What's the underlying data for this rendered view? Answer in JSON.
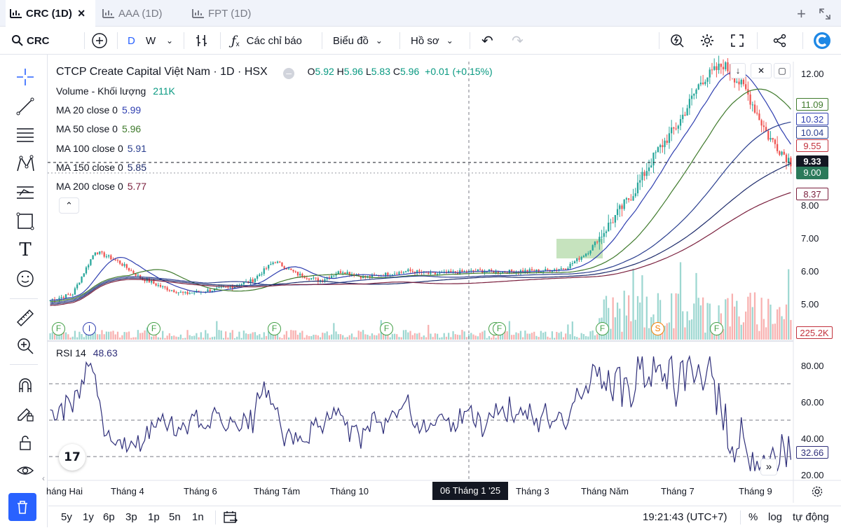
{
  "tabs": [
    {
      "label": "CRC (1D)",
      "active": true
    },
    {
      "label": "AAA (1D)",
      "active": false
    },
    {
      "label": "FPT (1D)",
      "active": false
    }
  ],
  "toolbar": {
    "symbol": "CRC",
    "interval_d": "D",
    "interval_w": "W",
    "indicators": "Các chỉ báo",
    "chart_type": "Biểu đồ",
    "profile": "Hồ sơ"
  },
  "legend": {
    "title": "CTCP Create Capital Việt Nam · 1D · HSX",
    "o_label": "O",
    "o": "5.92",
    "h_label": "H",
    "h": "5.96",
    "l_label": "L",
    "l": "5.83",
    "c_label": "C",
    "c": "5.96",
    "change": "+0.01 (+0.15%)",
    "volume_label": "Volume - Khối lượng",
    "volume": "211K",
    "ma": [
      {
        "label": "MA 20 close 0",
        "value": "5.99",
        "color": "#2f3fb0"
      },
      {
        "label": "MA 50 close 0",
        "value": "5.96",
        "color": "#3f7a2c"
      },
      {
        "label": "MA 100 close 0",
        "value": "5.91",
        "color": "#2b3f8f"
      },
      {
        "label": "MA 150 close 0",
        "value": "5.85",
        "color": "#1c2a6a"
      },
      {
        "label": "MA 200 close 0",
        "value": "5.77",
        "color": "#7a1f3d"
      }
    ]
  },
  "price_axis": [
    "12.00",
    "8.00",
    "7.00",
    "6.00",
    "5.00"
  ],
  "price_labels": [
    {
      "text": "11.09",
      "color": "#3f7a2c",
      "bg": "#ffffff"
    },
    {
      "text": "10.32",
      "color": "#2f3fb0",
      "bg": "#ffffff"
    },
    {
      "text": "10.04",
      "color": "#2b3f8f",
      "bg": "#ffffff"
    },
    {
      "text": "9.55",
      "color": "#c2313c",
      "bg": "#ffffff"
    },
    {
      "text": "9.33",
      "color": "#ffffff",
      "bg": "#131722"
    },
    {
      "text": "9.00",
      "color": "#ffffff",
      "bg": "#2b7a5a"
    },
    {
      "text": "8.37",
      "color": "#7a1f3d",
      "bg": "#ffffff"
    }
  ],
  "volume_axis_label": "225.2K",
  "rsi": {
    "label": "RSI 14",
    "value": "48.63",
    "axis": [
      "80.00",
      "60.00",
      "40.00",
      "20.00"
    ],
    "last": "32.66"
  },
  "time_axis": [
    "háng Hai",
    "Tháng 4",
    "Tháng 6",
    "Tháng Tám",
    "Tháng 10",
    "Tháng 3",
    "Tháng Năm",
    "Tháng 7",
    "Tháng 9"
  ],
  "crosshair_date": "06 Tháng 1 '25",
  "event_markers": [
    "F",
    "I",
    "F",
    "F",
    "F",
    "F",
    "F",
    "F",
    "S",
    "F"
  ],
  "ranges": [
    "5y",
    "1y",
    "6p",
    "3p",
    "1p",
    "5n",
    "1n"
  ],
  "clock": "19:21:43 (UTC+7)",
  "pct": "%",
  "log": "log",
  "auto": "tự động",
  "chart_data": {
    "type": "line",
    "series": [
      {
        "values": [
          5.1,
          5.3,
          6.6,
          6.3,
          5.8,
          5.5,
          5.3,
          5.4,
          5.5,
          5.7,
          6.3,
          5.9,
          5.7,
          6.0,
          5.8,
          5.9,
          6.0,
          5.9,
          5.95,
          6.0,
          5.96,
          6.0,
          6.0,
          6.1,
          6.6,
          7.5,
          8.4,
          9.6,
          10.5,
          11.8,
          12.3,
          11.5,
          10.1,
          9.33
        ]
      }
    ],
    "ylim": [
      4.4,
      12.4
    ]
  }
}
